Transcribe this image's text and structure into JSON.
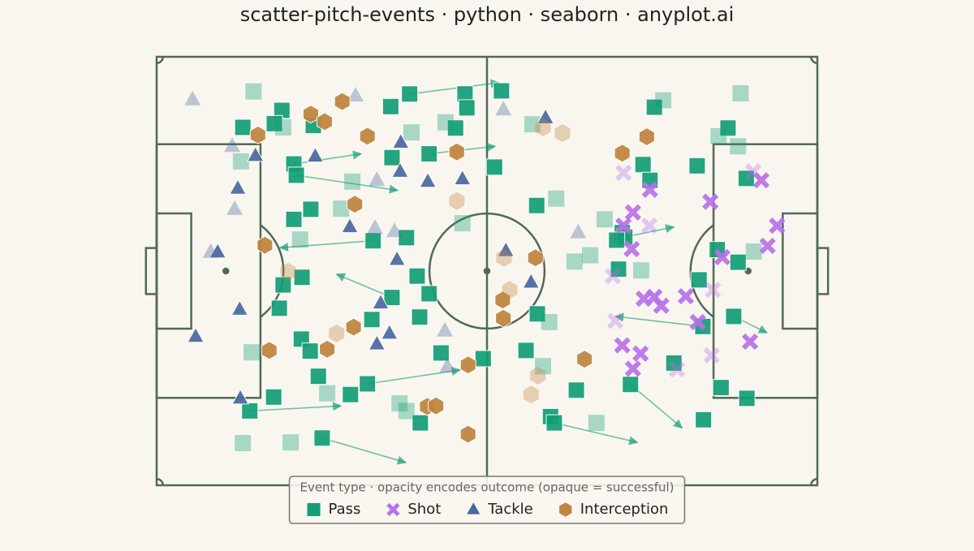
{
  "chart_data": {
    "type": "scatter",
    "title": "scatter-pitch-events · python · seaborn · anyplot.ai",
    "legend_title": "Event type  ·  opacity encodes outcome (opaque = successful)",
    "legend": "lower center",
    "xlim": [
      0,
      105
    ],
    "ylim": [
      0,
      68
    ],
    "series": [
      {
        "name": "Pass",
        "color": "#129e76",
        "marker": "square",
        "x": [
          40.2,
          37.2,
          19.9,
          18.7,
          13.7,
          24.9,
          49.0,
          49.3,
          54.8,
          47.5,
          21.8,
          22.2,
          37.4,
          43.3,
          53.7,
          24.5,
          21.8,
          34.4,
          39.7,
          60.4,
          79.1,
          90.8,
          85.9,
          77.3,
          78.4,
          93.7,
          74.0,
          74.4,
          73.4,
          89.1,
          92.4,
          86.2,
          23.1,
          20.1,
          19.5,
          41.4,
          43.3,
          37.4,
          34.2,
          41.8,
          60.5,
          23.0,
          24.4,
          45.2,
          51.9,
          58.7,
          25.7,
          33.5,
          30.8,
          18.6,
          14.8,
          41.9,
          26.3,
          62.6,
          63.2,
          66.7,
          75.3,
          86.9,
          89.7,
          93.8,
          82.2,
          91.7,
          86.8,
          73.1,
          15.4,
          80.5,
          92.8,
          20.1,
          40.5,
          45.9,
          59.7,
          89.3,
          92.4,
          13.4,
          31.1,
          29.3,
          63.5,
          71.2,
          48.6,
          22.8,
          66.4,
          68.9,
          77.0,
          94.9,
          62.4,
          61.4,
          15.1,
          27.1,
          38.6,
          39.7,
          69.9,
          13.7,
          21.3
        ],
        "y": [
          62.1,
          60.1,
          59.5,
          57.4,
          56.8,
          57.1,
          62.1,
          59.9,
          62.6,
          56.7,
          51.0,
          49.2,
          52.0,
          52.6,
          50.5,
          43.8,
          42.2,
          38.8,
          39.3,
          44.4,
          60.0,
          56.7,
          50.7,
          50.9,
          48.4,
          48.7,
          40.1,
          39.4,
          34.3,
          37.4,
          35.4,
          32.6,
          33.0,
          31.8,
          28.1,
          33.2,
          30.4,
          29.8,
          26.3,
          26.7,
          27.2,
          23.2,
          21.3,
          21.0,
          20.1,
          21.4,
          17.3,
          16.1,
          14.4,
          14.0,
          11.8,
          9.9,
          7.5,
          10.9,
          9.9,
          15.1,
          16.0,
          10.4,
          15.5,
          13.8,
          19.4,
          26.8,
          25.2,
          38.9,
          62.5,
          61.1,
          62.2,
          56.8,
          56.0,
          57.6,
          57.3,
          55.4,
          53.8,
          51.4,
          48.2,
          43.9,
          45.5,
          42.2,
          41.6,
          39.0,
          35.5,
          36.5,
          34.1,
          37.1,
          25.9,
          18.9,
          21.1,
          14.6,
          13.0,
          11.8,
          9.9,
          6.7,
          6.8
        ],
        "x_end": [
          54.4,
          null,
          null,
          null,
          null,
          null,
          null,
          null,
          null,
          null,
          32.5,
          38.3,
          null,
          53.8,
          null,
          null,
          null,
          19.6,
          null,
          null,
          null,
          null,
          null,
          null,
          null,
          null,
          null,
          82.2,
          null,
          null,
          null,
          null,
          null,
          null,
          null,
          null,
          null,
          28.6,
          null,
          null,
          null,
          null,
          null,
          null,
          null,
          null,
          null,
          48.2,
          null,
          null,
          29.3,
          null,
          39.6,
          null,
          76.4,
          null,
          83.5,
          null,
          null,
          null,
          null,
          97.0,
          72.9,
          null,
          null,
          null,
          null,
          null,
          null,
          null,
          null,
          null,
          null,
          null,
          null,
          null,
          null,
          null,
          null,
          null,
          null,
          null,
          null,
          null,
          null,
          null,
          null,
          null,
          null,
          null,
          null,
          null,
          null
        ],
        "y_end": [
          63.9,
          null,
          null,
          null,
          null,
          null,
          null,
          null,
          null,
          null,
          52.6,
          46.8,
          null,
          53.8,
          null,
          null,
          null,
          37.7,
          null,
          null,
          null,
          null,
          null,
          null,
          null,
          null,
          null,
          41.0,
          null,
          null,
          null,
          null,
          null,
          null,
          null,
          null,
          null,
          33.5,
          null,
          null,
          null,
          null,
          null,
          null,
          null,
          null,
          null,
          18.3,
          null,
          null,
          12.6,
          null,
          3.6,
          null,
          6.8,
          null,
          9.1,
          null,
          null,
          null,
          null,
          24.2,
          26.8,
          null,
          null,
          null,
          null,
          null,
          null,
          null,
          null,
          null,
          null,
          null,
          null,
          null,
          null,
          null,
          null,
          null,
          null,
          null,
          null,
          null,
          null,
          null,
          null,
          null,
          null,
          null,
          null,
          null,
          null
        ],
        "successful": [
          true,
          true,
          true,
          true,
          true,
          true,
          true,
          true,
          true,
          true,
          true,
          true,
          true,
          true,
          true,
          true,
          true,
          true,
          true,
          true,
          true,
          true,
          true,
          true,
          true,
          true,
          true,
          true,
          true,
          true,
          true,
          true,
          true,
          true,
          true,
          true,
          true,
          true,
          true,
          true,
          true,
          true,
          true,
          true,
          true,
          true,
          true,
          true,
          true,
          true,
          true,
          true,
          true,
          true,
          true,
          true,
          true,
          true,
          true,
          true,
          true,
          true,
          true,
          true,
          false,
          false,
          false,
          false,
          false,
          false,
          false,
          false,
          false,
          false,
          false,
          false,
          false,
          false,
          false,
          false,
          false,
          false,
          false,
          false,
          false,
          false,
          false,
          false,
          false,
          false,
          false,
          false,
          false
        ]
      },
      {
        "name": "Shot",
        "color": "#b870e8",
        "marker": "x",
        "x": [
          78.4,
          88.0,
          96.1,
          98.6,
          97.1,
          75.7,
          74.2,
          75.5,
          89.9,
          79.1,
          77.4,
          80.2,
          84.1,
          86.0,
          94.3,
          74.0,
          76.9,
          75.7,
          74.2,
          94.8,
          78.3,
          88.4,
          72.9,
          88.2,
          82.7,
          72.5
        ],
        "y": [
          46.9,
          45.0,
          48.4,
          41.2,
          38.0,
          43.3,
          41.2,
          37.5,
          36.2,
          29.9,
          29.6,
          28.5,
          30.0,
          25.9,
          22.8,
          22.2,
          20.9,
          18.5,
          49.6,
          49.8,
          41.2,
          31.0,
          26.1,
          20.6,
          18.4,
          33.2
        ],
        "successful": [
          true,
          true,
          true,
          true,
          true,
          true,
          true,
          true,
          true,
          true,
          true,
          true,
          true,
          true,
          true,
          true,
          true,
          true,
          false,
          false,
          false,
          false,
          false,
          false,
          false,
          false
        ]
      },
      {
        "name": "Tackle",
        "color": "#4a68a0",
        "marker": "triangle",
        "x": [
          15.7,
          25.2,
          38.8,
          38.7,
          43.1,
          48.6,
          12.9,
          30.7,
          9.7,
          38.2,
          55.5,
          59.5,
          35.6,
          13.2,
          37.0,
          35.0,
          6.2,
          13.3,
          61.8,
          5.7,
          31.6,
          55.1,
          12.0,
          35.0,
          12.4,
          34.7,
          37.8,
          45.8,
          46.2,
          67.0,
          8.6
        ],
        "y": [
          52.3,
          52.2,
          54.4,
          49.8,
          48.2,
          48.6,
          47.1,
          41.0,
          37.0,
          35.8,
          37.2,
          32.2,
          28.9,
          27.9,
          24.1,
          22.4,
          23.6,
          13.8,
          58.3,
          61.2,
          61.8,
          59.6,
          53.8,
          48.4,
          43.8,
          40.8,
          40.3,
          24.5,
          18.8,
          40.1,
          37.0
        ],
        "successful": [
          true,
          true,
          true,
          true,
          true,
          true,
          true,
          true,
          true,
          true,
          true,
          true,
          true,
          true,
          true,
          true,
          true,
          true,
          true,
          false,
          false,
          false,
          false,
          false,
          false,
          false,
          false,
          false,
          false,
          false,
          false
        ]
      },
      {
        "name": "Interception",
        "color": "#c0843d",
        "marker": "hexagon",
        "x": [
          29.5,
          24.5,
          26.7,
          16.1,
          33.5,
          47.7,
          77.9,
          74.0,
          31.5,
          17.2,
          60.2,
          55.0,
          55.1,
          31.3,
          27.1,
          17.9,
          49.5,
          68.0,
          43.0,
          44.4,
          49.5,
          61.4,
          64.5,
          47.7,
          55.2,
          56.1,
          20.9,
          28.6,
          60.6,
          59.5
        ],
        "y": [
          60.9,
          58.9,
          57.7,
          55.6,
          55.4,
          52.9,
          55.3,
          52.7,
          44.6,
          38.1,
          36.1,
          29.4,
          26.5,
          25.1,
          21.6,
          21.4,
          19.1,
          20.0,
          12.5,
          12.6,
          8.1,
          56.8,
          55.9,
          45.1,
          36.1,
          31.0,
          33.9,
          24.1,
          17.4,
          14.4
        ],
        "successful": [
          true,
          true,
          true,
          true,
          true,
          true,
          true,
          true,
          true,
          true,
          true,
          true,
          true,
          true,
          true,
          true,
          true,
          true,
          true,
          true,
          true,
          false,
          false,
          false,
          false,
          false,
          false,
          false,
          false,
          false
        ]
      }
    ]
  }
}
